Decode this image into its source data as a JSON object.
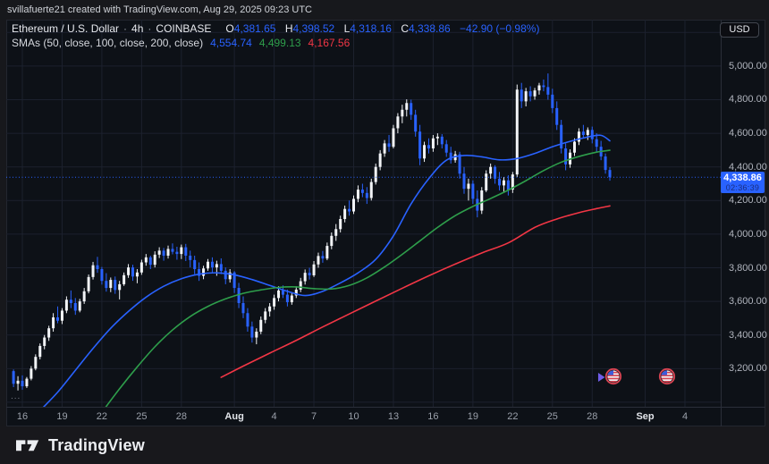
{
  "attribution": {
    "text": "svillafuerte21 created with TradingView.com, Aug 29, 2025 09:23 UTC"
  },
  "legend": {
    "symbol_title": "Ethereum / U.S. Dollar",
    "separator": "·",
    "interval": "4h",
    "exchange": "COINBASE",
    "ohlc": {
      "o_label": "O",
      "o": "4,381.65",
      "h_label": "H",
      "h": "4,398.52",
      "l_label": "L",
      "l": "4,318.16",
      "c_label": "C",
      "c": "4,338.86",
      "change": "−42.90 (−0.98%)"
    },
    "sma_label": "SMAs (50, close, 100, close, 200, close)",
    "sma_values": [
      {
        "value": "4,554.74",
        "color": "#2962ff"
      },
      {
        "value": "4,499.13",
        "color": "#2e9e4b"
      },
      {
        "value": "4,167.56",
        "color": "#f23645"
      }
    ]
  },
  "price_axis": {
    "currency": "USD",
    "labels": [
      {
        "text": "5,000.00",
        "value": 5000
      },
      {
        "text": "4,800.00",
        "value": 4800
      },
      {
        "text": "4,600.00",
        "value": 4600
      },
      {
        "text": "4,400.00",
        "value": 4400
      },
      {
        "text": "4,200.00",
        "value": 4200
      },
      {
        "text": "4,000.00",
        "value": 4000
      },
      {
        "text": "3,800.00",
        "value": 3800
      },
      {
        "text": "3,600.00",
        "value": 3600
      },
      {
        "text": "3,400.00",
        "value": 3400
      },
      {
        "text": "3,200.00",
        "value": 3200
      }
    ],
    "badge": {
      "price": "4,338.86",
      "countdown": "02:36:39",
      "value": 4338.86
    }
  },
  "time_axis": {
    "ticks": [
      {
        "label": "16",
        "day": 0,
        "month": false
      },
      {
        "label": "19",
        "day": 3,
        "month": false
      },
      {
        "label": "22",
        "day": 6,
        "month": false
      },
      {
        "label": "25",
        "day": 9,
        "month": false
      },
      {
        "label": "28",
        "day": 12,
        "month": false
      },
      {
        "label": "Aug",
        "day": 16,
        "month": true
      },
      {
        "label": "4",
        "day": 19,
        "month": false
      },
      {
        "label": "7",
        "day": 22,
        "month": false
      },
      {
        "label": "10",
        "day": 25,
        "month": false
      },
      {
        "label": "13",
        "day": 28,
        "month": false
      },
      {
        "label": "16",
        "day": 31,
        "month": false
      },
      {
        "label": "19",
        "day": 34,
        "month": false
      },
      {
        "label": "22",
        "day": 37,
        "month": false
      },
      {
        "label": "25",
        "day": 40,
        "month": false
      },
      {
        "label": "28",
        "day": 43,
        "month": false
      },
      {
        "label": "Sep",
        "day": 47,
        "month": true
      },
      {
        "label": "4",
        "day": 50,
        "month": false
      }
    ]
  },
  "plot": {
    "more_label": "..."
  },
  "footer": {
    "logo_text": "TradingView"
  },
  "colors": {
    "candle_up": "#f2f4f7",
    "candle_down": "#2962ff",
    "sma50": "#2962ff",
    "sma100": "#2e9e4b",
    "sma200": "#f23645",
    "grid": "#1c212e",
    "current_price_line": "#2962ff",
    "badge_bg": "#2962ff",
    "event_ring": "#d94452",
    "event_canton": "#3b5bdc",
    "cursor_arrow": "#6f5ce8"
  },
  "chart_data": {
    "type": "candlestick",
    "title": "Ethereum / U.S. Dollar · 4h · COINBASE",
    "interval": "4h",
    "last_ohlc": {
      "open": 4381.65,
      "high": 4398.52,
      "low": 4318.16,
      "close": 4338.86,
      "change": -42.9,
      "change_pct": -0.98
    },
    "current_price": 4338.86,
    "y_axis": {
      "visible_range": [
        2973,
        5276
      ],
      "tick_step": 200
    },
    "grid_prices": [
      5200,
      5000,
      4800,
      4600,
      4400,
      4200,
      4000,
      3800,
      3600,
      3400,
      3200,
      3000
    ],
    "start_index": -2,
    "candles": [
      [
        3185,
        3195,
        3090,
        3110
      ],
      [
        3110,
        3155,
        3070,
        3128
      ],
      [
        3128,
        3160,
        3075,
        3095
      ],
      [
        3095,
        3150,
        3085,
        3140
      ],
      [
        3140,
        3215,
        3130,
        3200
      ],
      [
        3200,
        3285,
        3190,
        3270
      ],
      [
        3270,
        3350,
        3255,
        3335
      ],
      [
        3335,
        3400,
        3315,
        3385
      ],
      [
        3385,
        3455,
        3365,
        3440
      ],
      [
        3440,
        3530,
        3420,
        3505
      ],
      [
        3505,
        3570,
        3470,
        3485
      ],
      [
        3485,
        3560,
        3465,
        3545
      ],
      [
        3545,
        3630,
        3530,
        3610
      ],
      [
        3610,
        3665,
        3560,
        3590
      ],
      [
        3590,
        3620,
        3520,
        3545
      ],
      [
        3545,
        3615,
        3535,
        3600
      ],
      [
        3600,
        3680,
        3585,
        3660
      ],
      [
        3660,
        3760,
        3648,
        3745
      ],
      [
        3745,
        3835,
        3730,
        3815
      ],
      [
        3815,
        3865,
        3770,
        3792
      ],
      [
        3792,
        3805,
        3700,
        3722
      ],
      [
        3722,
        3768,
        3658,
        3680
      ],
      [
        3680,
        3742,
        3655,
        3728
      ],
      [
        3728,
        3748,
        3645,
        3668
      ],
      [
        3668,
        3722,
        3612,
        3702
      ],
      [
        3702,
        3772,
        3692,
        3756
      ],
      [
        3756,
        3822,
        3740,
        3802
      ],
      [
        3802,
        3818,
        3722,
        3748
      ],
      [
        3748,
        3792,
        3708,
        3772
      ],
      [
        3772,
        3848,
        3758,
        3832
      ],
      [
        3832,
        3882,
        3812,
        3862
      ],
      [
        3862,
        3872,
        3792,
        3818
      ],
      [
        3818,
        3898,
        3802,
        3878
      ],
      [
        3878,
        3922,
        3858,
        3902
      ],
      [
        3902,
        3918,
        3842,
        3872
      ],
      [
        3872,
        3932,
        3855,
        3912
      ],
      [
        3912,
        3945,
        3880,
        3895
      ],
      [
        3895,
        3925,
        3848,
        3882
      ],
      [
        3882,
        3938,
        3852,
        3922
      ],
      [
        3922,
        3942,
        3840,
        3872
      ],
      [
        3872,
        3902,
        3802,
        3846
      ],
      [
        3846,
        3872,
        3762,
        3792
      ],
      [
        3792,
        3832,
        3722,
        3752
      ],
      [
        3752,
        3812,
        3732,
        3796
      ],
      [
        3796,
        3852,
        3782,
        3836
      ],
      [
        3836,
        3862,
        3772,
        3802
      ],
      [
        3802,
        3842,
        3752,
        3822
      ],
      [
        3822,
        3856,
        3762,
        3782
      ],
      [
        3782,
        3802,
        3702,
        3732
      ],
      [
        3732,
        3792,
        3712,
        3772
      ],
      [
        3772,
        3780,
        3650,
        3680
      ],
      [
        3680,
        3710,
        3560,
        3590
      ],
      [
        3590,
        3630,
        3500,
        3530
      ],
      [
        3530,
        3560,
        3420,
        3450
      ],
      [
        3450,
        3480,
        3355,
        3385
      ],
      [
        3385,
        3440,
        3345,
        3420
      ],
      [
        3420,
        3510,
        3405,
        3490
      ],
      [
        3490,
        3560,
        3470,
        3540
      ],
      [
        3540,
        3590,
        3510,
        3570
      ],
      [
        3570,
        3640,
        3550,
        3620
      ],
      [
        3620,
        3690,
        3600,
        3665
      ],
      [
        3665,
        3695,
        3620,
        3640
      ],
      [
        3640,
        3670,
        3570,
        3595
      ],
      [
        3595,
        3655,
        3580,
        3635
      ],
      [
        3635,
        3690,
        3620,
        3670
      ],
      [
        3670,
        3740,
        3655,
        3720
      ],
      [
        3720,
        3790,
        3700,
        3770
      ],
      [
        3770,
        3800,
        3730,
        3755
      ],
      [
        3755,
        3840,
        3745,
        3820
      ],
      [
        3820,
        3890,
        3800,
        3870
      ],
      [
        3870,
        3900,
        3830,
        3855
      ],
      [
        3855,
        3950,
        3845,
        3930
      ],
      [
        3930,
        4010,
        3910,
        3990
      ],
      [
        3990,
        4060,
        3960,
        4030
      ],
      [
        4030,
        4110,
        4010,
        4090
      ],
      [
        4090,
        4170,
        4070,
        4150
      ],
      [
        4150,
        4200,
        4110,
        4135
      ],
      [
        4135,
        4230,
        4120,
        4210
      ],
      [
        4210,
        4290,
        4190,
        4265
      ],
      [
        4265,
        4300,
        4220,
        4245
      ],
      [
        4245,
        4280,
        4180,
        4215
      ],
      [
        4215,
        4330,
        4200,
        4310
      ],
      [
        4310,
        4420,
        4295,
        4400
      ],
      [
        4400,
        4500,
        4380,
        4480
      ],
      [
        4480,
        4560,
        4460,
        4540
      ],
      [
        4540,
        4590,
        4490,
        4520
      ],
      [
        4520,
        4650,
        4510,
        4630
      ],
      [
        4630,
        4720,
        4600,
        4700
      ],
      [
        4700,
        4770,
        4660,
        4740
      ],
      [
        4740,
        4802,
        4700,
        4780
      ],
      [
        4780,
        4800,
        4680,
        4710
      ],
      [
        4710,
        4740,
        4580,
        4610
      ],
      [
        4610,
        4650,
        4410,
        4450
      ],
      [
        4450,
        4550,
        4430,
        4530
      ],
      [
        4530,
        4570,
        4480,
        4510
      ],
      [
        4510,
        4590,
        4490,
        4570
      ],
      [
        4570,
        4600,
        4530,
        4580
      ],
      [
        4580,
        4595,
        4510,
        4535
      ],
      [
        4535,
        4560,
        4460,
        4485
      ],
      [
        4485,
        4520,
        4420,
        4440
      ],
      [
        4440,
        4495,
        4425,
        4475
      ],
      [
        4475,
        4490,
        4330,
        4360
      ],
      [
        4360,
        4400,
        4240,
        4270
      ],
      [
        4270,
        4330,
        4200,
        4300
      ],
      [
        4300,
        4320,
        4180,
        4210
      ],
      [
        4210,
        4260,
        4100,
        4140
      ],
      [
        4140,
        4280,
        4120,
        4260
      ],
      [
        4260,
        4380,
        4250,
        4360
      ],
      [
        4360,
        4420,
        4330,
        4400
      ],
      [
        4400,
        4410,
        4300,
        4330
      ],
      [
        4330,
        4370,
        4260,
        4290
      ],
      [
        4290,
        4340,
        4250,
        4320
      ],
      [
        4320,
        4350,
        4230,
        4265
      ],
      [
        4265,
        4370,
        4245,
        4355
      ],
      [
        4355,
        4890,
        4340,
        4860
      ],
      [
        4860,
        4900,
        4750,
        4790
      ],
      [
        4790,
        4870,
        4760,
        4850
      ],
      [
        4850,
        4880,
        4790,
        4820
      ],
      [
        4820,
        4870,
        4800,
        4855
      ],
      [
        4855,
        4900,
        4830,
        4885
      ],
      [
        4885,
        4920,
        4850,
        4875
      ],
      [
        4875,
        4956,
        4800,
        4830
      ],
      [
        4830,
        4865,
        4720,
        4750
      ],
      [
        4750,
        4790,
        4620,
        4650
      ],
      [
        4650,
        4680,
        4480,
        4510
      ],
      [
        4510,
        4540,
        4380,
        4415
      ],
      [
        4415,
        4505,
        4395,
        4485
      ],
      [
        4485,
        4570,
        4465,
        4550
      ],
      [
        4550,
        4630,
        4530,
        4610
      ],
      [
        4610,
        4650,
        4570,
        4590
      ],
      [
        4590,
        4635,
        4560,
        4620
      ],
      [
        4620,
        4640,
        4540,
        4565
      ],
      [
        4565,
        4600,
        4490,
        4520
      ],
      [
        4520,
        4555,
        4440,
        4462
      ],
      [
        4462,
        4480,
        4360,
        4382
      ],
      [
        4381.65,
        4398.52,
        4318.16,
        4338.86
      ]
    ],
    "series": [
      {
        "name": "SMA 50",
        "color_key": "sma50",
        "last_value": 4554.74,
        "anchors": [
          [
            4,
            2950
          ],
          [
            8,
            3060
          ],
          [
            12,
            3190
          ],
          [
            16,
            3320
          ],
          [
            20,
            3440
          ],
          [
            24,
            3540
          ],
          [
            28,
            3625
          ],
          [
            32,
            3690
          ],
          [
            36,
            3735
          ],
          [
            40,
            3762
          ],
          [
            44,
            3770
          ],
          [
            48,
            3758
          ],
          [
            52,
            3730
          ],
          [
            56,
            3695
          ],
          [
            60,
            3660
          ],
          [
            64,
            3635
          ],
          [
            68,
            3660
          ],
          [
            72,
            3710
          ],
          [
            76,
            3770
          ],
          [
            80,
            3850
          ],
          [
            84,
            3990
          ],
          [
            88,
            4180
          ],
          [
            92,
            4330
          ],
          [
            96,
            4440
          ],
          [
            100,
            4468
          ],
          [
            104,
            4460
          ],
          [
            108,
            4442
          ],
          [
            112,
            4450
          ],
          [
            116,
            4480
          ],
          [
            120,
            4520
          ],
          [
            124,
            4552
          ],
          [
            128,
            4578
          ],
          [
            131,
            4588
          ],
          [
            133,
            4555
          ]
        ]
      },
      {
        "name": "SMA 100",
        "color_key": "sma100",
        "last_value": 4499.13,
        "anchors": [
          [
            18,
            2940
          ],
          [
            22,
            3080
          ],
          [
            26,
            3210
          ],
          [
            30,
            3330
          ],
          [
            34,
            3430
          ],
          [
            38,
            3510
          ],
          [
            42,
            3570
          ],
          [
            46,
            3615
          ],
          [
            50,
            3648
          ],
          [
            54,
            3668
          ],
          [
            58,
            3683
          ],
          [
            62,
            3686
          ],
          [
            66,
            3676
          ],
          [
            70,
            3674
          ],
          [
            74,
            3695
          ],
          [
            78,
            3740
          ],
          [
            82,
            3805
          ],
          [
            86,
            3880
          ],
          [
            90,
            3960
          ],
          [
            94,
            4040
          ],
          [
            98,
            4110
          ],
          [
            102,
            4165
          ],
          [
            106,
            4212
          ],
          [
            110,
            4262
          ],
          [
            114,
            4318
          ],
          [
            118,
            4378
          ],
          [
            122,
            4428
          ],
          [
            126,
            4462
          ],
          [
            130,
            4488
          ],
          [
            133,
            4499
          ]
        ]
      },
      {
        "name": "SMA 200",
        "color_key": "sma200",
        "last_value": 4167.56,
        "anchors": [
          [
            45,
            3148
          ],
          [
            50,
            3215
          ],
          [
            56,
            3292
          ],
          [
            62,
            3368
          ],
          [
            68,
            3448
          ],
          [
            74,
            3525
          ],
          [
            80,
            3602
          ],
          [
            86,
            3678
          ],
          [
            92,
            3752
          ],
          [
            98,
            3822
          ],
          [
            104,
            3888
          ],
          [
            110,
            3948
          ],
          [
            116,
            4040
          ],
          [
            121,
            4090
          ],
          [
            126,
            4128
          ],
          [
            130,
            4152
          ],
          [
            133,
            4168
          ]
        ]
      }
    ],
    "events": [
      {
        "day": 44.6,
        "icon": "us-flag",
        "cursor": true
      },
      {
        "day": 48.65,
        "icon": "us-flag",
        "cursor": false
      }
    ]
  }
}
